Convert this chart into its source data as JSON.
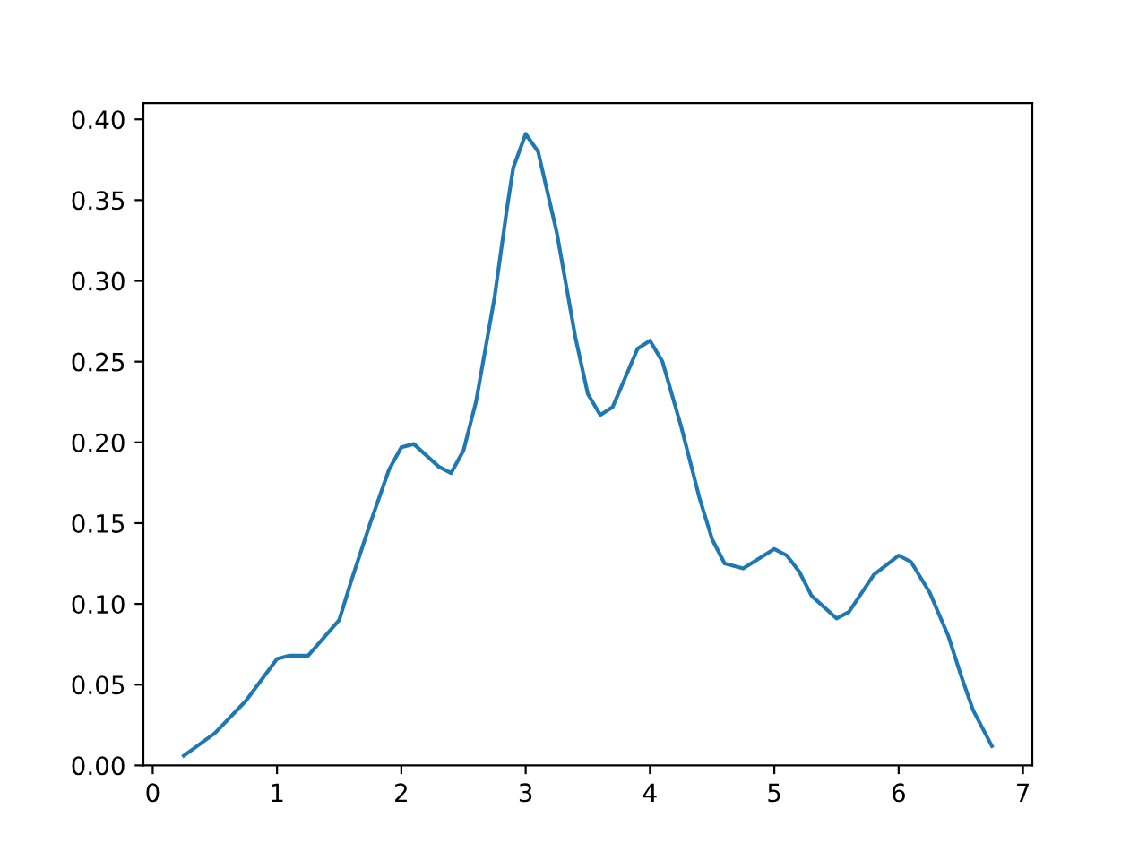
{
  "chart_data": {
    "type": "line",
    "x": [
      0.25,
      0.5,
      0.75,
      1.0,
      1.1,
      1.25,
      1.5,
      1.6,
      1.75,
      1.9,
      2.0,
      2.1,
      2.3,
      2.4,
      2.5,
      2.6,
      2.75,
      2.85,
      2.9,
      3.0,
      3.1,
      3.25,
      3.4,
      3.5,
      3.6,
      3.7,
      3.8,
      3.9,
      4.0,
      4.1,
      4.25,
      4.4,
      4.5,
      4.6,
      4.75,
      5.0,
      5.1,
      5.2,
      5.3,
      5.5,
      5.6,
      5.8,
      6.0,
      6.1,
      6.25,
      6.4,
      6.5,
      6.6,
      6.75
    ],
    "series": [
      {
        "color": "#1f77b4",
        "values": [
          0.006,
          0.02,
          0.04,
          0.066,
          0.068,
          0.068,
          0.09,
          0.115,
          0.15,
          0.183,
          0.197,
          0.199,
          0.185,
          0.181,
          0.195,
          0.225,
          0.29,
          0.345,
          0.37,
          0.391,
          0.38,
          0.33,
          0.265,
          0.23,
          0.217,
          0.222,
          0.24,
          0.258,
          0.263,
          0.25,
          0.21,
          0.165,
          0.14,
          0.125,
          0.122,
          0.134,
          0.13,
          0.12,
          0.105,
          0.091,
          0.095,
          0.118,
          0.13,
          0.126,
          0.107,
          0.08,
          0.056,
          0.034,
          0.012
        ]
      }
    ],
    "xlim": [
      -0.075,
      7.075
    ],
    "ylim": [
      0,
      0.41
    ],
    "xticks": [
      0,
      1,
      2,
      3,
      4,
      5,
      6,
      7
    ],
    "yticks": [
      {
        "value": 0,
        "label": "0.00"
      },
      {
        "value": 0.05,
        "label": "0.05"
      },
      {
        "value": 0.1,
        "label": "0.10"
      },
      {
        "value": 0.15,
        "label": "0.15"
      },
      {
        "value": 0.2,
        "label": "0.20"
      },
      {
        "value": 0.25,
        "label": "0.25"
      },
      {
        "value": 0.3,
        "label": "0.30"
      },
      {
        "value": 0.35,
        "label": "0.35"
      },
      {
        "value": 0.4,
        "label": "0.40"
      }
    ],
    "grid": false,
    "legend": false
  }
}
